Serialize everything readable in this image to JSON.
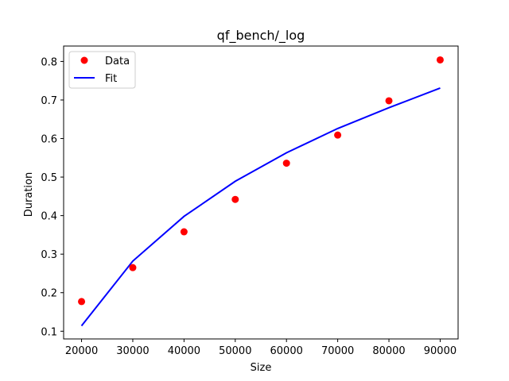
{
  "chart_data": {
    "type": "scatter",
    "title": "qf_bench/_log",
    "xlabel": "Size",
    "ylabel": "Duration",
    "xlim": [
      16500,
      93500
    ],
    "ylim": [
      0.08,
      0.84
    ],
    "xticks": [
      20000,
      30000,
      40000,
      50000,
      60000,
      70000,
      80000,
      90000
    ],
    "xtick_labels": [
      "20000",
      "30000",
      "40000",
      "50000",
      "60000",
      "70000",
      "80000",
      "90000"
    ],
    "yticks": [
      0.1,
      0.2,
      0.3,
      0.4,
      0.5,
      0.6,
      0.7,
      0.8
    ],
    "ytick_labels": [
      "0.1",
      "0.2",
      "0.3",
      "0.4",
      "0.5",
      "0.6",
      "0.7",
      "0.8"
    ],
    "grid": false,
    "legend_position": "top-left",
    "series": [
      {
        "name": "Data",
        "kind": "scatter",
        "color": "#ff0000",
        "x": [
          20000,
          30000,
          40000,
          50000,
          60000,
          70000,
          80000,
          90000
        ],
        "y": [
          0.177,
          0.265,
          0.358,
          0.442,
          0.536,
          0.609,
          0.698,
          0.804
        ]
      },
      {
        "name": "Fit",
        "kind": "line",
        "color": "#0000ff",
        "x": [
          20000,
          30000,
          40000,
          50000,
          60000,
          70000,
          80000,
          90000
        ],
        "y": [
          0.114,
          0.282,
          0.398,
          0.489,
          0.563,
          0.626,
          0.68,
          0.731
        ]
      }
    ]
  }
}
